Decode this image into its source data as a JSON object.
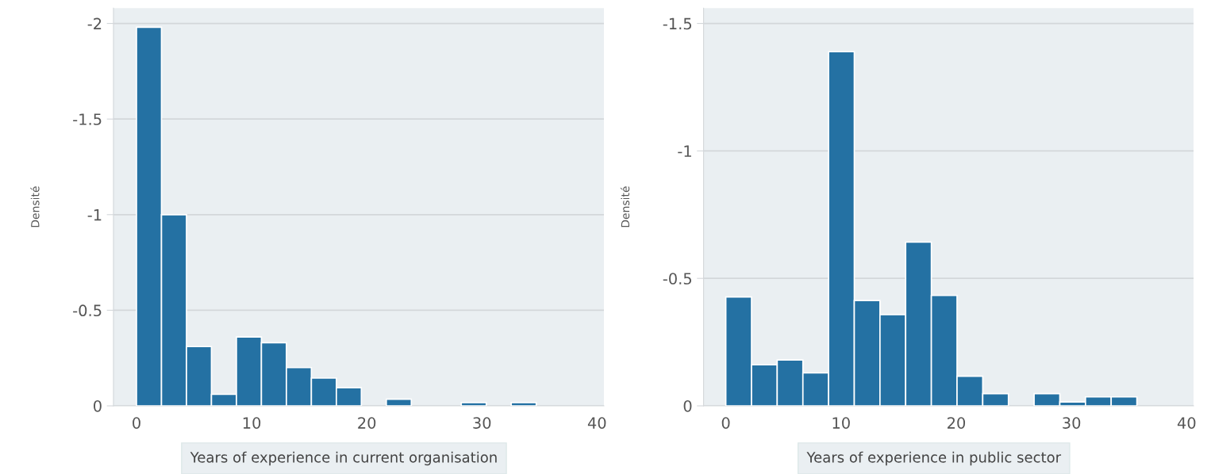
{
  "chart_data": [
    {
      "type": "histogram",
      "xlabel": "Years of experience in current organisation",
      "ylabel": "Densité",
      "color": "#2471a3",
      "bins": [
        0,
        2.17,
        4.34,
        6.51,
        8.68,
        10.85,
        13.02,
        15.19,
        17.36,
        19.53,
        21.7,
        23.87,
        26.04,
        28.21,
        30.38,
        32.55,
        34.72
      ],
      "values": [
        -1.98,
        -1.0,
        -0.31,
        -0.06,
        -0.36,
        -0.33,
        -0.2,
        -0.145,
        -0.095,
        0,
        -0.035,
        0,
        0,
        -0.017,
        0,
        -0.017
      ],
      "xlim": [
        -2,
        40.6
      ],
      "xticks": [
        0,
        10,
        20,
        30,
        40
      ],
      "ylim": [
        0,
        -2.08
      ],
      "yticks": [
        0,
        -0.5,
        -1,
        -1.5,
        -2
      ],
      "grid": "y"
    },
    {
      "type": "histogram",
      "xlabel": "Years of experience in public sector",
      "ylabel": "Densité",
      "color": "#2471a3",
      "bins": [
        0,
        2.23,
        4.46,
        6.69,
        8.92,
        11.15,
        13.38,
        15.61,
        17.84,
        20.07,
        22.3,
        24.53,
        26.76,
        28.99,
        31.22,
        33.45,
        35.68
      ],
      "values": [
        -0.427,
        -0.161,
        -0.18,
        -0.129,
        -1.389,
        -0.413,
        -0.358,
        -0.642,
        -0.433,
        -0.116,
        -0.048,
        0,
        -0.048,
        -0.015,
        -0.035,
        -0.035
      ],
      "xlim": [
        -1.93,
        40.6
      ],
      "xticks": [
        0,
        10,
        20,
        30,
        40
      ],
      "ylim": [
        0,
        -1.56
      ],
      "yticks": [
        0,
        -0.5,
        -1,
        -1.5
      ],
      "grid": "y"
    }
  ]
}
